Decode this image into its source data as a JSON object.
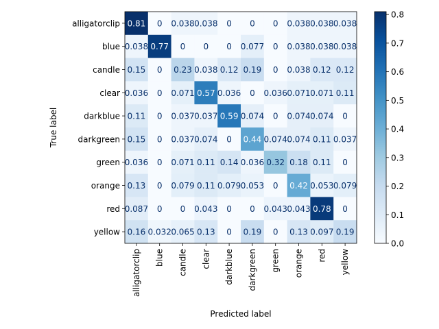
{
  "chart_data": {
    "type": "heatmap",
    "title": "",
    "xlabel": "Predicted label",
    "ylabel": "True label",
    "labels": [
      "alligatorclip",
      "blue",
      "candle",
      "clear",
      "darkblue",
      "darkgreen",
      "green",
      "orange",
      "red",
      "yellow"
    ],
    "matrix": [
      [
        0.81,
        0,
        0.038,
        0.038,
        0,
        0,
        0,
        0.038,
        0.038,
        0.038
      ],
      [
        0.038,
        0.77,
        0,
        0,
        0,
        0.077,
        0,
        0.038,
        0.038,
        0.038
      ],
      [
        0.15,
        0,
        0.23,
        0.038,
        0.12,
        0.19,
        0,
        0.038,
        0.12,
        0.12
      ],
      [
        0.036,
        0,
        0.071,
        0.57,
        0.036,
        0,
        0.036,
        0.071,
        0.071,
        0.11
      ],
      [
        0.11,
        0,
        0.037,
        0.037,
        0.59,
        0.074,
        0,
        0.074,
        0.074,
        0
      ],
      [
        0.15,
        0,
        0.037,
        0.074,
        0,
        0.44,
        0.074,
        0.074,
        0.11,
        0.037
      ],
      [
        0.036,
        0,
        0.071,
        0.11,
        0.14,
        0.036,
        0.32,
        0.18,
        0.11,
        0
      ],
      [
        0.13,
        0,
        0.079,
        0.11,
        0.079,
        0.053,
        0,
        0.42,
        0.053,
        0.079
      ],
      [
        0.087,
        0,
        0,
        0.043,
        0,
        0,
        0.043,
        0.043,
        0.78,
        0
      ],
      [
        0.16,
        0.032,
        0.065,
        0.13,
        0,
        0.19,
        0,
        0.13,
        0.097,
        0.19
      ]
    ],
    "cell_labels": [
      [
        "0.81",
        "0",
        "0.038",
        "0.038",
        "0",
        "0",
        "0",
        "0.038",
        "0.038",
        "0.038"
      ],
      [
        "0.038",
        "0.77",
        "0",
        "0",
        "0",
        "0.077",
        "0",
        "0.038",
        "0.038",
        "0.038"
      ],
      [
        "0.15",
        "0",
        "0.23",
        "0.038",
        "0.12",
        "0.19",
        "0",
        "0.038",
        "0.12",
        "0.12"
      ],
      [
        "0.036",
        "0",
        "0.071",
        "0.57",
        "0.036",
        "0",
        "0.036",
        "0.071",
        "0.071",
        "0.11"
      ],
      [
        "0.11",
        "0",
        "0.037",
        "0.037",
        "0.59",
        "0.074",
        "0",
        "0.074",
        "0.074",
        "0"
      ],
      [
        "0.15",
        "0",
        "0.037",
        "0.074",
        "0",
        "0.44",
        "0.074",
        "0.074",
        "0.11",
        "0.037"
      ],
      [
        "0.036",
        "0",
        "0.071",
        "0.11",
        "0.14",
        "0.036",
        "0.32",
        "0.18",
        "0.11",
        "0"
      ],
      [
        "0.13",
        "0",
        "0.079",
        "0.11",
        "0.079",
        "0.053",
        "0",
        "0.42",
        "0.053",
        "0.079"
      ],
      [
        "0.087",
        "0",
        "0",
        "0.043",
        "0",
        "0",
        "0.043",
        "0.043",
        "0.78",
        "0"
      ],
      [
        "0.16",
        "0.032",
        "0.065",
        "0.13",
        "0",
        "0.19",
        "0",
        "0.13",
        "0.097",
        "0.19"
      ]
    ],
    "colorbar": {
      "min": 0.0,
      "max": 0.81,
      "ticks": [
        0.0,
        0.1,
        0.2,
        0.3,
        0.4,
        0.5,
        0.6,
        0.7,
        0.8
      ],
      "tick_labels": [
        "0.0",
        "0.1",
        "0.2",
        "0.3",
        "0.4",
        "0.5",
        "0.6",
        "0.7",
        "0.8"
      ]
    },
    "colormap": "Blues",
    "colors": {
      "low": "#f7fbff",
      "high": "#08306b",
      "text_dark": "#08306b",
      "text_light": "#f7fbff"
    },
    "grid": false
  }
}
